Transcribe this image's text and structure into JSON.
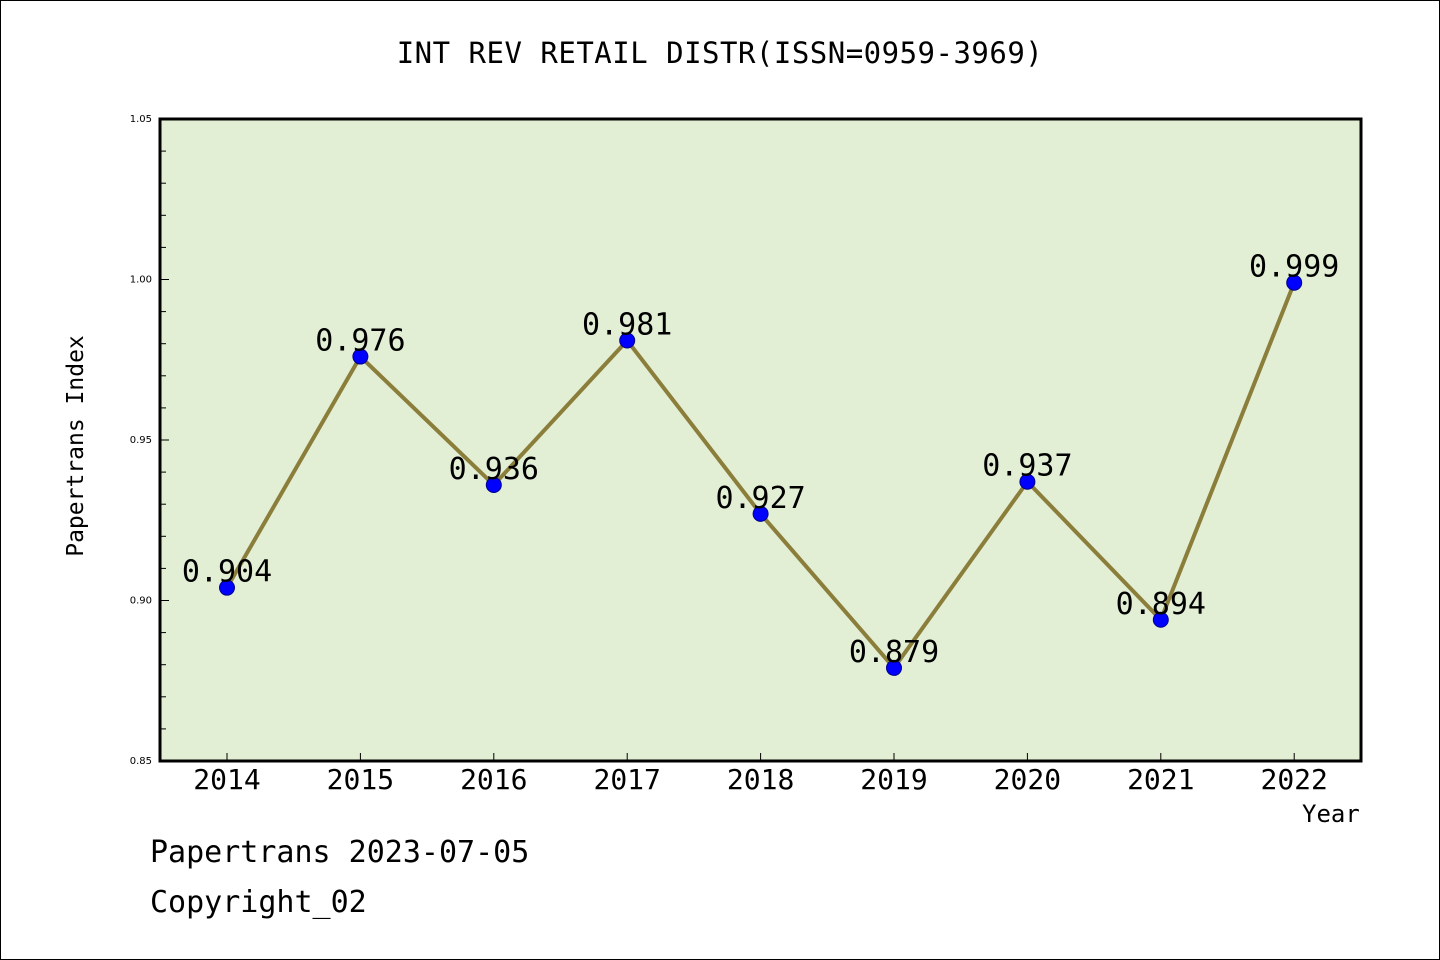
{
  "page": {
    "footer_line1": "Papertrans 2023-07-05",
    "footer_line2": "Copyright_02"
  },
  "chart_data": {
    "type": "line",
    "title": "INT REV RETAIL DISTR(ISSN=0959-3969)",
    "xlabel": "Year",
    "ylabel": "Papertrans Index",
    "categories": [
      "2014",
      "2015",
      "2016",
      "2017",
      "2018",
      "2019",
      "2020",
      "2021",
      "2022"
    ],
    "values": [
      0.904,
      0.976,
      0.936,
      0.981,
      0.927,
      0.879,
      0.937,
      0.894,
      0.999
    ],
    "data_labels": [
      "0.904",
      "0.976",
      "0.936",
      "0.981",
      "0.927",
      "0.879",
      "0.937",
      "0.894",
      "0.999"
    ],
    "ylim": [
      0.85,
      1.05
    ],
    "yticks": [
      "0.85",
      "0.90",
      "0.95",
      "1.00",
      "1.05"
    ],
    "grid": false,
    "colors": {
      "plot_background": "#e2efd5",
      "line": "#8b7d3a",
      "marker": "#0000ff",
      "marker_edge": "#00008b"
    }
  }
}
